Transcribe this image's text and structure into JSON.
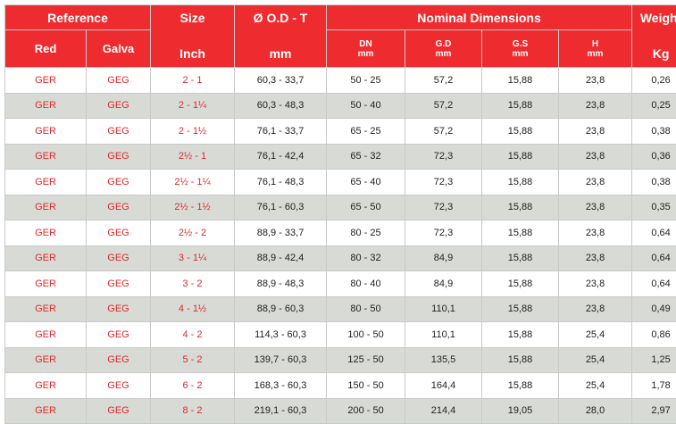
{
  "headers": {
    "reference": "Reference",
    "red": "Red",
    "galva": "Galva",
    "size": "Size",
    "inch": "Inch",
    "od_t": "Ø O.D - T",
    "od_unit": "mm",
    "nominal": "Nominal Dimensions",
    "dn": "DN",
    "dn_unit": "mm",
    "gd": "G.D",
    "gd_unit": "mm",
    "gs": "G.S",
    "gs_unit": "mm",
    "h": "H",
    "h_unit": "mm",
    "weight": "Weight",
    "weight_unit": "Kg"
  },
  "rows": [
    [
      "GER",
      "GEG",
      "2 - 1",
      "60,3 - 33,7",
      "50 - 25",
      "57,2",
      "15,88",
      "23,8",
      "0,26"
    ],
    [
      "GER",
      "GEG",
      "2 - 1¼",
      "60,3 - 48,3",
      "50 - 40",
      "57,2",
      "15,88",
      "23,8",
      "0,25"
    ],
    [
      "GER",
      "GEG",
      "2 - 1½",
      "76,1 - 33,7",
      "65 - 25",
      "57,2",
      "15,88",
      "23,8",
      "0,38"
    ],
    [
      "GER",
      "GEG",
      "2½ - 1",
      "76,1 - 42,4",
      "65 - 32",
      "72,3",
      "15,88",
      "23,8",
      "0,36"
    ],
    [
      "GER",
      "GEG",
      "2½ - 1¼",
      "76,1 - 48,3",
      "65 - 40",
      "72,3",
      "15,88",
      "23,8",
      "0,38"
    ],
    [
      "GER",
      "GEG",
      "2½ - 1½",
      "76,1 - 60,3",
      "65 - 50",
      "72,3",
      "15,88",
      "23,8",
      "0,35"
    ],
    [
      "GER",
      "GEG",
      "2½ - 2",
      "88,9 - 33,7",
      "80 - 25",
      "72,3",
      "15,88",
      "23,8",
      "0,64"
    ],
    [
      "GER",
      "GEG",
      "3 - 1¼",
      "88,9 - 42,4",
      "80 - 32",
      "84,9",
      "15,88",
      "23,8",
      "0,64"
    ],
    [
      "GER",
      "GEG",
      "3 - 2",
      "88,9 - 48,3",
      "80 - 40",
      "84,9",
      "15,88",
      "23,8",
      "0,64"
    ],
    [
      "GER",
      "GEG",
      "4 - 1½",
      "88,9 - 60,3",
      "80 - 50",
      "110,1",
      "15,88",
      "23,8",
      "0,49"
    ],
    [
      "GER",
      "GEG",
      "4 - 2",
      "114,3 - 60,3",
      "100 - 50",
      "110,1",
      "15,88",
      "25,4",
      "0,86"
    ],
    [
      "GER",
      "GEG",
      "5 - 2",
      "139,7 - 60,3",
      "125 - 50",
      "135,5",
      "15,88",
      "25,4",
      "1,25"
    ],
    [
      "GER",
      "GEG",
      "6 - 2",
      "168,3 - 60,3",
      "150 - 50",
      "164,4",
      "15,88",
      "25,4",
      "1,78"
    ],
    [
      "GER",
      "GEG",
      "8 - 2",
      "219,1 - 60,3",
      "200 - 50",
      "214,4",
      "19,05",
      "28,0",
      "2,97"
    ]
  ],
  "colors": {
    "header_bg": "#ee2b2f",
    "header_text": "#ffffff",
    "stripe": "#d8dbd5",
    "accent_text": "#e0292b"
  }
}
